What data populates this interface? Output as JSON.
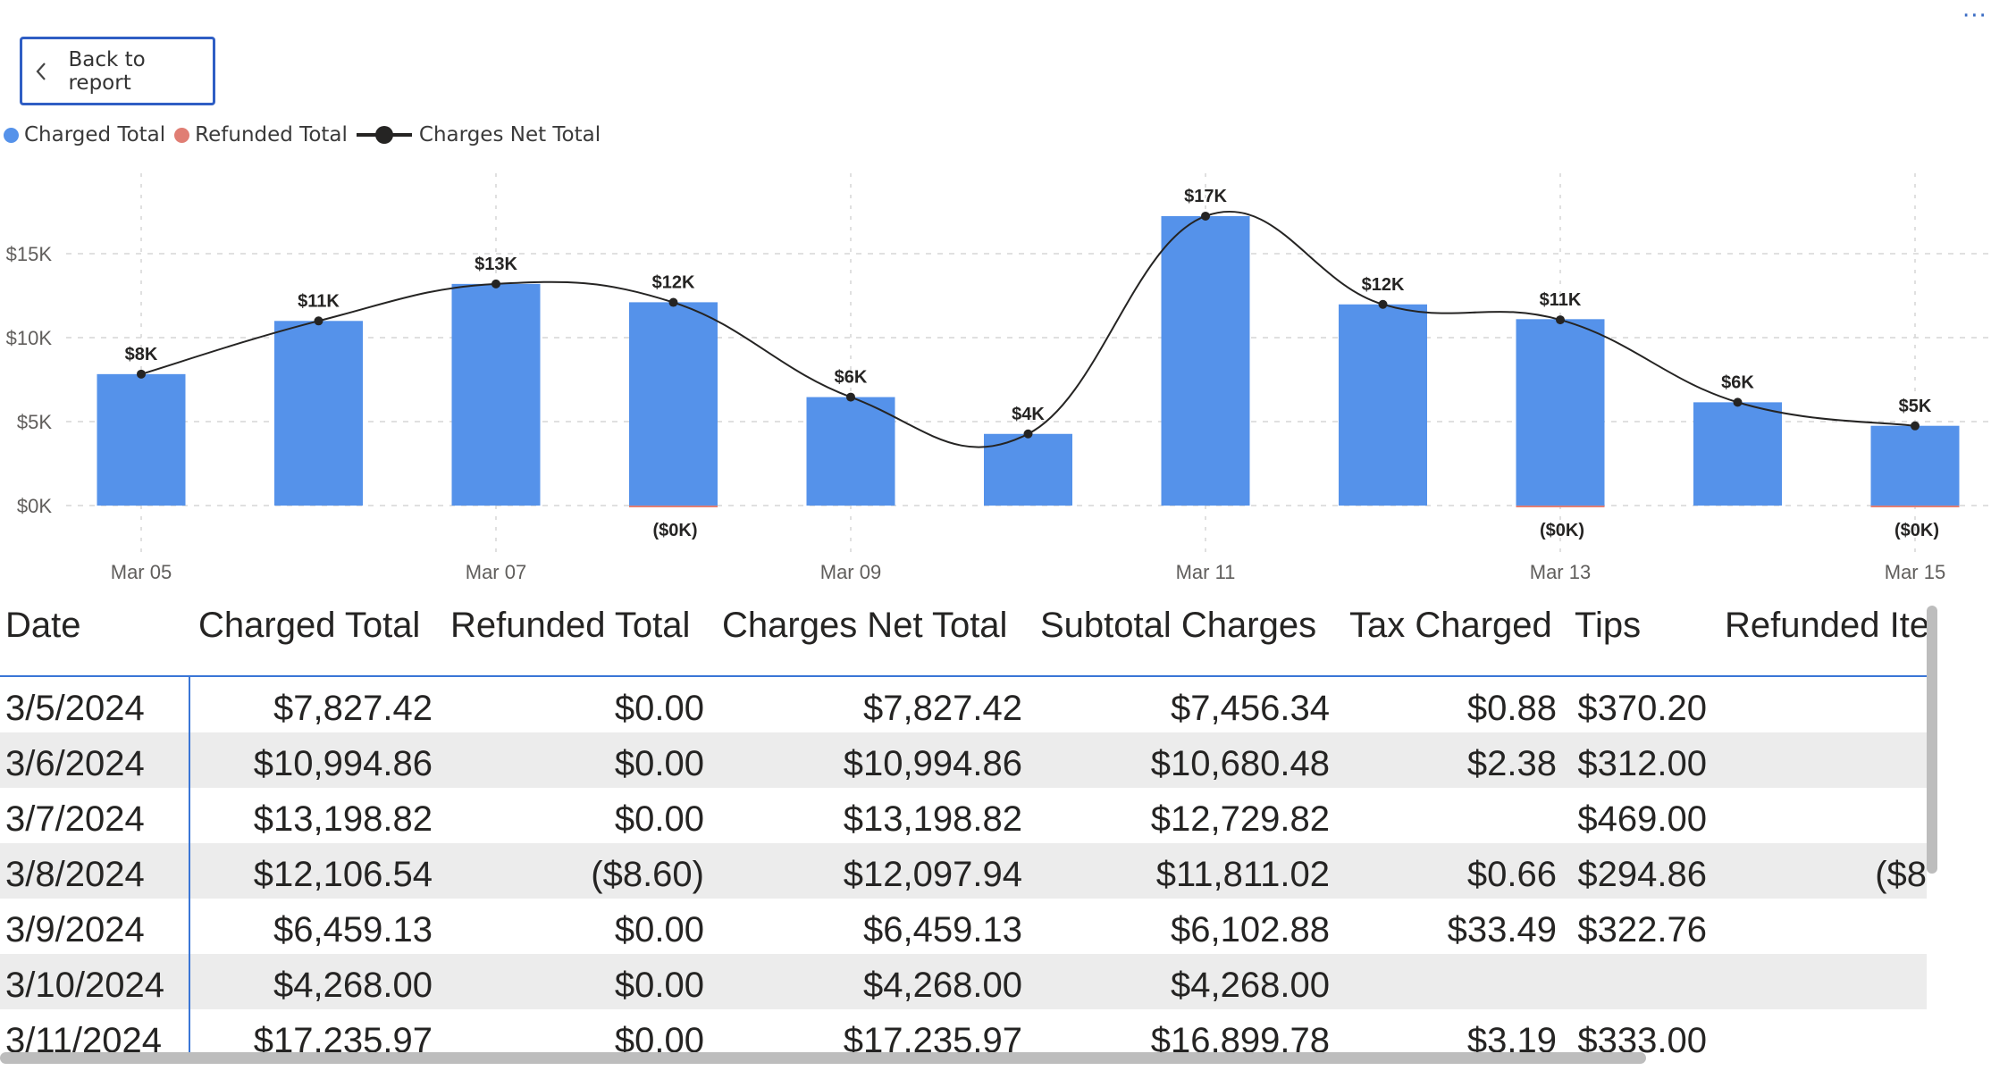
{
  "toolbar": {
    "more_label": "···",
    "back_label": "Back to report"
  },
  "legend": [
    {
      "label": "Charged Total",
      "color": "#5592ea"
    },
    {
      "label": "Refunded Total",
      "color": "#e07e74"
    },
    {
      "label": "Charges Net Total",
      "color": "#252423"
    }
  ],
  "chart_data": {
    "type": "bar",
    "categories": [
      "Mar 05",
      "Mar 06",
      "Mar 07",
      "Mar 08",
      "Mar 09",
      "Mar 10",
      "Mar 11",
      "Mar 12",
      "Mar 13",
      "Mar 14",
      "Mar 15"
    ],
    "x_tick_labels": [
      "Mar 05",
      "",
      "Mar 07",
      "",
      "Mar 09",
      "",
      "Mar 11",
      "",
      "Mar 13",
      "",
      "Mar 15"
    ],
    "y_ticks": [
      {
        "value": 0,
        "label": "$0K"
      },
      {
        "value": 5000,
        "label": "$5K"
      },
      {
        "value": 10000,
        "label": "$10K"
      },
      {
        "value": 15000,
        "label": "$15K"
      }
    ],
    "ylim": [
      0,
      19000
    ],
    "grid": true,
    "legend_position": "top-left",
    "series": [
      {
        "name": "Charged Total",
        "type": "bar",
        "color": "#5592ea",
        "values": [
          7827.42,
          10994.86,
          13198.82,
          12106.54,
          6459.13,
          4268.0,
          17235.97,
          11980,
          11100,
          6150,
          4750
        ]
      },
      {
        "name": "Refunded Total",
        "type": "bar",
        "color": "#e07e74",
        "values": [
          0,
          0,
          0,
          -8.6,
          0,
          0,
          0,
          0,
          -40,
          0,
          -5
        ],
        "labels": [
          "",
          "",
          "",
          "($0K)",
          "",
          "",
          "",
          "",
          "($0K)",
          "",
          "($0K)"
        ]
      },
      {
        "name": "Charges Net Total",
        "type": "line",
        "color": "#252423",
        "values": [
          7827.42,
          10994.86,
          13198.82,
          12097.94,
          6459.13,
          4268.0,
          17235.97,
          11980,
          11060,
          6150,
          4745
        ],
        "labels": [
          "$8K",
          "$11K",
          "$13K",
          "$12K",
          "$6K",
          "$4K",
          "$17K",
          "$12K",
          "$11K",
          "$6K",
          "$5K"
        ]
      }
    ]
  },
  "table": {
    "columns": [
      "Date",
      "Charged Total",
      "Refunded Total",
      "Charges Net Total",
      "Subtotal Charges",
      "Tax Charged",
      "Tips",
      "Refunded Ite"
    ],
    "rows": [
      [
        "3/5/2024",
        "$7,827.42",
        "$0.00",
        "$7,827.42",
        "$7,456.34",
        "$0.88",
        "$370.20",
        ""
      ],
      [
        "3/6/2024",
        "$10,994.86",
        "$0.00",
        "$10,994.86",
        "$10,680.48",
        "$2.38",
        "$312.00",
        ""
      ],
      [
        "3/7/2024",
        "$13,198.82",
        "$0.00",
        "$13,198.82",
        "$12,729.82",
        "",
        "$469.00",
        ""
      ],
      [
        "3/8/2024",
        "$12,106.54",
        "($8.60)",
        "$12,097.94",
        "$11,811.02",
        "$0.66",
        "$294.86",
        "($8"
      ],
      [
        "3/9/2024",
        "$6,459.13",
        "$0.00",
        "$6,459.13",
        "$6,102.88",
        "$33.49",
        "$322.76",
        ""
      ],
      [
        "3/10/2024",
        "$4,268.00",
        "$0.00",
        "$4,268.00",
        "$4,268.00",
        "",
        "",
        ""
      ],
      [
        "3/11/2024",
        "$17,235.97",
        "$0.00",
        "$17,235.97",
        "$16,899.78",
        "$3.19",
        "$333.00",
        ""
      ]
    ]
  }
}
